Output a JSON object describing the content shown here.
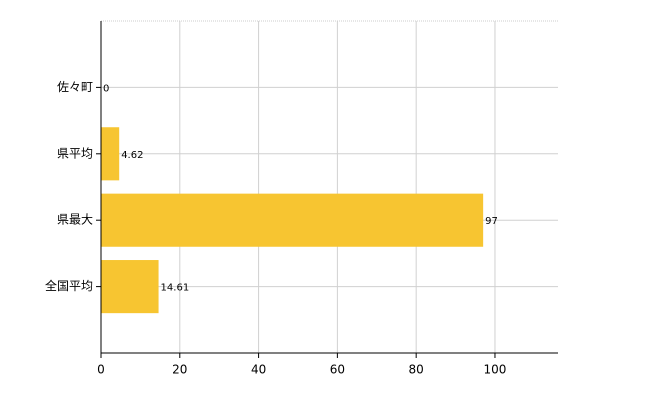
{
  "chart_data": {
    "type": "hbar",
    "categories": [
      "佐々町",
      "県平均",
      "県最大",
      "全国平均"
    ],
    "values": [
      0,
      4.62,
      97,
      14.61
    ],
    "color": "#f7c531",
    "xlim": [
      0,
      116
    ],
    "xticks": [
      0,
      20,
      40,
      60,
      80,
      100
    ],
    "grid": true,
    "data_labels": true
  }
}
